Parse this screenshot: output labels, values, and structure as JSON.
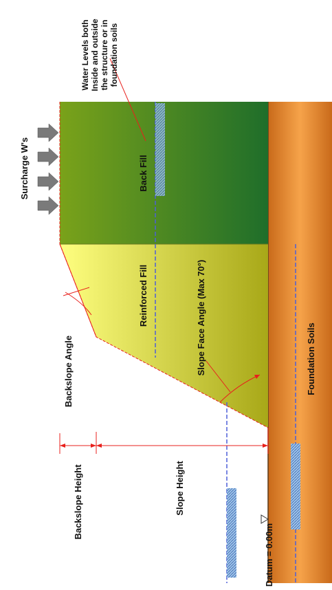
{
  "labels": {
    "surcharge": "Surcharge W's",
    "water_levels": [
      "Water Levels both",
      "Inside and outside",
      "the structure or in",
      "foundation soils"
    ],
    "back_fill": "Back Fill",
    "reinforced_fill": "Reinforced Fill",
    "slope_face_angle": "Slope Face Angle (Max 70°)",
    "backslope_angle": "Backslope Angle",
    "foundation_soils": "Foundation Soils",
    "backslope_height": "Backslope Height",
    "slope_height": "Slope Height",
    "datum": "Datum = 0.00m"
  },
  "colors": {
    "backfill_dark": "#1f6e2a",
    "backfill_light": "#7aa21a",
    "reinforced_dark": "#a8a818",
    "reinforced_light": "#ffff80",
    "foundation_dark": "#c96a1a",
    "foundation_light": "#f6a34a",
    "dimension_line": "#e8201c",
    "water_line": "#4d5fd8",
    "arrow_fill": "#7a7a7a"
  }
}
